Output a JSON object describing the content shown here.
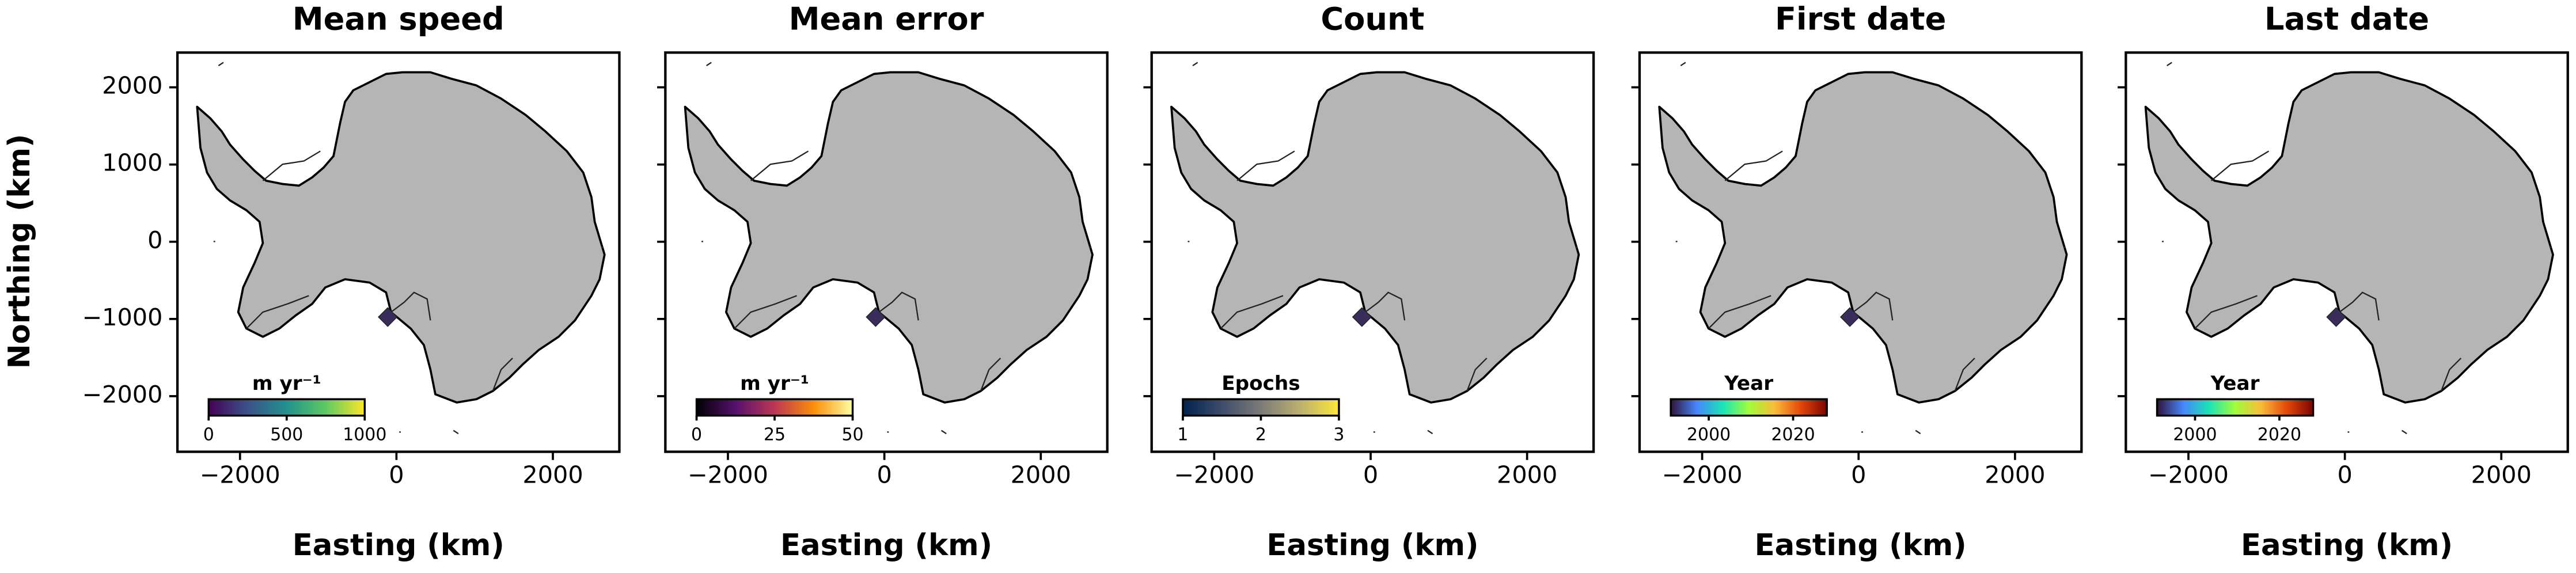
{
  "chart_data": [
    {
      "type": "map",
      "title": "Mean speed",
      "xlabel": "Easting (km)",
      "ylabel": "Northing (km)",
      "xlim": [
        -2800,
        2850
      ],
      "ylim": [
        -2720,
        2450
      ],
      "xticks": [
        {
          "value": -2000,
          "label": "−2000"
        },
        0,
        2000
      ],
      "yticks": [
        {
          "value": -2000,
          "label": "−2000"
        },
        {
          "value": -1000,
          "label": "−1000"
        },
        0,
        1000,
        2000
      ],
      "ytick_labels": true,
      "colorbar": {
        "label": "m yr⁻¹",
        "colormap": "viridis",
        "lim": [
          0,
          1000
        ],
        "ticks": [
          0,
          500,
          1000
        ]
      }
    },
    {
      "type": "map",
      "title": "Mean error",
      "xlabel": "Easting (km)",
      "xlim": [
        -2800,
        2850
      ],
      "ylim": [
        -2720,
        2450
      ],
      "xticks": [
        {
          "value": -2000,
          "label": "−2000"
        },
        0,
        2000
      ],
      "yticks": [
        -2000,
        -1000,
        0,
        1000,
        2000
      ],
      "ytick_labels": false,
      "colorbar": {
        "label": "m yr⁻¹",
        "colormap": "inferno",
        "lim": [
          0,
          50
        ],
        "ticks": [
          0,
          25,
          50
        ]
      }
    },
    {
      "type": "map",
      "title": "Count",
      "xlabel": "Easting (km)",
      "xlim": [
        -2800,
        2850
      ],
      "ylim": [
        -2720,
        2450
      ],
      "xticks": [
        {
          "value": -2000,
          "label": "−2000"
        },
        0,
        2000
      ],
      "yticks": [
        -2000,
        -1000,
        0,
        1000,
        2000
      ],
      "ytick_labels": false,
      "colorbar": {
        "label": "Epochs",
        "colormap": "cividis",
        "lim": [
          1,
          3
        ],
        "ticks": [
          1,
          2,
          3
        ]
      }
    },
    {
      "type": "map",
      "title": "First date",
      "xlabel": "Easting (km)",
      "xlim": [
        -2800,
        2850
      ],
      "ylim": [
        -2720,
        2450
      ],
      "xticks": [
        {
          "value": -2000,
          "label": "−2000"
        },
        0,
        2000
      ],
      "yticks": [
        -2000,
        -1000,
        0,
        1000,
        2000
      ],
      "ytick_labels": false,
      "colorbar": {
        "label": "Year",
        "colormap": "turbo",
        "lim": [
          1991,
          2028
        ],
        "ticks": [
          2000,
          2020
        ]
      }
    },
    {
      "type": "map",
      "title": "Last date",
      "xlabel": "Easting (km)",
      "xlim": [
        -2800,
        2850
      ],
      "ylim": [
        -2720,
        2450
      ],
      "xticks": [
        {
          "value": -2000,
          "label": "−2000"
        },
        0,
        2000
      ],
      "yticks": [
        -2000,
        -1000,
        0,
        1000,
        2000
      ],
      "ytick_labels": false,
      "colorbar": {
        "label": "Year",
        "colormap": "turbo",
        "lim": [
          1991,
          2028
        ],
        "ticks": [
          2000,
          2020
        ]
      }
    }
  ]
}
